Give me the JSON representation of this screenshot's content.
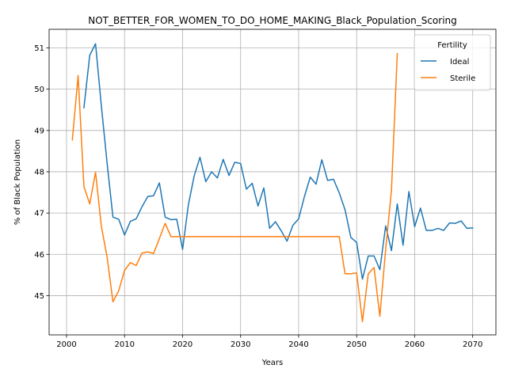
{
  "chart_data": {
    "type": "line",
    "title": "NOT_BETTER_FOR_WOMEN_TO_DO_HOME_MAKING_Black_Population_Scoring",
    "xlabel": "Years",
    "ylabel": "% of Black Population",
    "xlim": [
      1997,
      2074
    ],
    "ylim": [
      44.05,
      51.45
    ],
    "xticks": [
      2000,
      2010,
      2020,
      2030,
      2040,
      2050,
      2060,
      2070
    ],
    "yticks": [
      45,
      46,
      47,
      48,
      49,
      50,
      51
    ],
    "grid": true,
    "legend": {
      "title": "Fertility",
      "position": "top-right"
    },
    "series": [
      {
        "name": "Ideal",
        "color": "#1f77b4",
        "x": [
          2003,
          2004,
          2005,
          2006,
          2007,
          2008,
          2009,
          2010,
          2011,
          2012,
          2013,
          2014,
          2015,
          2016,
          2017,
          2018,
          2019,
          2020,
          2021,
          2022,
          2023,
          2024,
          2025,
          2026,
          2027,
          2028,
          2029,
          2030,
          2031,
          2032,
          2033,
          2034,
          2035,
          2036,
          2037,
          2038,
          2039,
          2040,
          2041,
          2042,
          2043,
          2044,
          2045,
          2046,
          2047,
          2048,
          2049,
          2050,
          2051,
          2052,
          2053,
          2054,
          2055,
          2056,
          2057,
          2058,
          2059,
          2060,
          2061,
          2062,
          2063,
          2064,
          2065,
          2066,
          2067,
          2068,
          2069,
          2070
        ],
        "values": [
          49.55,
          50.82,
          51.1,
          49.6,
          48.2,
          46.9,
          46.85,
          46.47,
          46.8,
          46.86,
          47.15,
          47.4,
          47.42,
          47.73,
          46.9,
          46.84,
          46.85,
          46.12,
          47.2,
          47.9,
          48.35,
          47.76,
          48.0,
          47.85,
          48.3,
          47.91,
          48.23,
          48.2,
          47.58,
          47.72,
          47.17,
          47.61,
          46.63,
          46.79,
          46.57,
          46.32,
          46.7,
          46.86,
          47.4,
          47.87,
          47.7,
          48.29,
          47.79,
          47.82,
          47.49,
          47.08,
          46.41,
          46.29,
          45.4,
          45.96,
          45.96,
          45.63,
          46.69,
          46.09,
          47.22,
          46.22,
          47.52,
          46.67,
          47.12,
          46.58,
          46.58,
          46.63,
          46.58,
          46.76,
          46.75,
          46.81,
          46.63,
          46.64
        ]
      },
      {
        "name": "Sterile",
        "color": "#ff7f0e",
        "x": [
          2001,
          2002,
          2003,
          2004,
          2005,
          2006,
          2007,
          2008,
          2009,
          2010,
          2011,
          2012,
          2013,
          2014,
          2015,
          2016,
          2017,
          2018,
          2019,
          2020,
          2021,
          2022,
          2023,
          2024,
          2025,
          2026,
          2027,
          2028,
          2029,
          2030,
          2031,
          2032,
          2033,
          2034,
          2035,
          2036,
          2037,
          2038,
          2039,
          2040,
          2041,
          2042,
          2043,
          2044,
          2045,
          2046,
          2047,
          2048,
          2049,
          2050,
          2051,
          2052,
          2053,
          2054,
          2055,
          2056,
          2057
        ],
        "values": [
          48.77,
          50.33,
          47.64,
          47.22,
          47.99,
          46.68,
          45.93,
          44.85,
          45.12,
          45.61,
          45.8,
          45.73,
          46.03,
          46.06,
          46.02,
          46.38,
          46.75,
          46.43,
          46.43,
          46.43,
          46.43,
          46.43,
          46.43,
          46.43,
          46.43,
          46.43,
          46.43,
          46.43,
          46.43,
          46.43,
          46.43,
          46.43,
          46.43,
          46.43,
          46.43,
          46.43,
          46.43,
          46.43,
          46.43,
          46.43,
          46.43,
          46.43,
          46.43,
          46.43,
          46.43,
          46.43,
          46.43,
          45.53,
          45.53,
          45.55,
          44.37,
          45.53,
          45.68,
          44.5,
          46.12,
          47.55,
          50.86
        ]
      }
    ]
  }
}
